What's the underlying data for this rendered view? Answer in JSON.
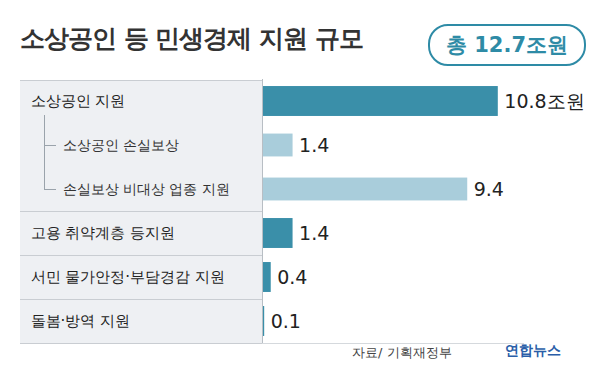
{
  "chart_data": {
    "type": "bar",
    "title": "소상공인 등 민생경제 지원 규모",
    "subtitle": "총 12.7조원",
    "orientation": "horizontal",
    "categories": [
      "소상공인 지원",
      "소상공인 손실보상",
      "손실보상 비대상 업종 지원",
      "고용 취약계층 등지원",
      "서민 물가안정·부담경감 지원",
      "돌봄·방역 지원"
    ],
    "values": [
      10.8,
      1.4,
      9.4,
      1.4,
      0.4,
      0.1
    ],
    "value_labels": [
      "10.8조원",
      "1.4",
      "9.4",
      "1.4",
      "0.4",
      "0.1"
    ],
    "colors": [
      "#3a8fa9",
      "#a9cddb",
      "#a9cddb",
      "#3a8fa9",
      "#3a8fa9",
      "#3a8fa9"
    ],
    "xlim": [
      0,
      12
    ],
    "xticks": [],
    "data_labels": true,
    "tick_labels": "y",
    "grid": false,
    "annotations": [
      "자료/ 기획재정부",
      "연합뉴스"
    ]
  }
}
